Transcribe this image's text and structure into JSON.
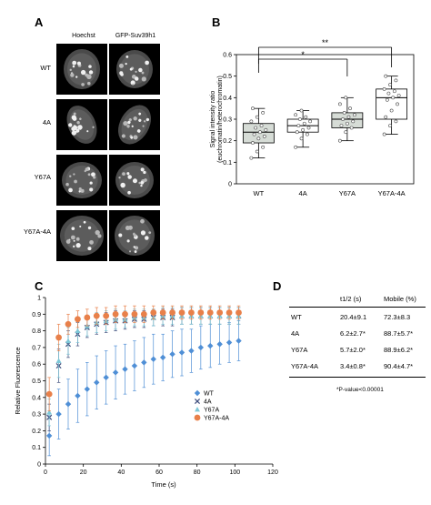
{
  "panels": {
    "a": "A",
    "b": "B",
    "c": "C",
    "d": "D"
  },
  "panelA": {
    "columns": [
      "Hoechst",
      "GFP-Suv39h1"
    ],
    "rows": [
      "WT",
      "4A",
      "Y67A",
      "Y67A-4A"
    ]
  },
  "chart_data": [
    {
      "type": "box",
      "categories": [
        "WT",
        "4A",
        "Y67A",
        "Y67A-4A"
      ],
      "ylabel": "Signal intensity ratio\n(euchromatin/heterochromatin)",
      "ylim": [
        0,
        0.6
      ],
      "yticks": [
        "0",
        "0.1",
        "0.2",
        "0.3",
        "0.4",
        "0.5",
        "0.6"
      ],
      "shaded_boxes": [
        true,
        false,
        true,
        false
      ],
      "boxes": [
        {
          "min": 0.12,
          "q1": 0.19,
          "median": 0.24,
          "q3": 0.28,
          "max": 0.35
        },
        {
          "min": 0.17,
          "q1": 0.24,
          "median": 0.27,
          "q3": 0.3,
          "max": 0.34
        },
        {
          "min": 0.2,
          "q1": 0.26,
          "median": 0.3,
          "q3": 0.33,
          "max": 0.4
        },
        {
          "min": 0.23,
          "q1": 0.3,
          "median": 0.4,
          "q3": 0.44,
          "max": 0.5
        }
      ],
      "points": [
        [
          0.12,
          0.15,
          0.17,
          0.19,
          0.21,
          0.22,
          0.23,
          0.24,
          0.25,
          0.26,
          0.27,
          0.29,
          0.31,
          0.33,
          0.35
        ],
        [
          0.17,
          0.21,
          0.23,
          0.24,
          0.25,
          0.26,
          0.27,
          0.28,
          0.29,
          0.3,
          0.31,
          0.32,
          0.34
        ],
        [
          0.2,
          0.24,
          0.26,
          0.27,
          0.28,
          0.29,
          0.3,
          0.31,
          0.32,
          0.33,
          0.35,
          0.37,
          0.4
        ],
        [
          0.23,
          0.27,
          0.29,
          0.31,
          0.34,
          0.37,
          0.39,
          0.4,
          0.41,
          0.42,
          0.43,
          0.44,
          0.46,
          0.48,
          0.5
        ]
      ],
      "significance": [
        {
          "from": "WT",
          "to": "Y67A",
          "label": "*"
        },
        {
          "from": "WT",
          "to": "Y67A-4A",
          "label": "**"
        }
      ]
    },
    {
      "type": "scatter",
      "xlabel": "Time (s)",
      "ylabel": "Relative Fluorescence",
      "xlim": [
        0,
        120
      ],
      "ylim": [
        0,
        1
      ],
      "xticks": [
        "0",
        "20",
        "40",
        "60",
        "80",
        "100",
        "120"
      ],
      "yticks": [
        "0",
        "0.1",
        "0.2",
        "0.3",
        "0.4",
        "0.5",
        "0.6",
        "0.7",
        "0.8",
        "0.9",
        "1"
      ],
      "legend": "right",
      "series": [
        {
          "name": "WT",
          "marker": "diamond",
          "color": "#4f8fd6",
          "x": [
            2,
            7,
            12,
            17,
            22,
            27,
            32,
            37,
            42,
            47,
            52,
            57,
            62,
            67,
            72,
            77,
            82,
            87,
            92,
            97,
            102
          ],
          "y": [
            0.17,
            0.3,
            0.36,
            0.41,
            0.45,
            0.49,
            0.52,
            0.55,
            0.57,
            0.59,
            0.61,
            0.63,
            0.64,
            0.66,
            0.67,
            0.68,
            0.7,
            0.71,
            0.72,
            0.73,
            0.74
          ],
          "err": [
            0.12,
            0.15,
            0.15,
            0.16,
            0.16,
            0.16,
            0.16,
            0.16,
            0.15,
            0.15,
            0.15,
            0.15,
            0.14,
            0.14,
            0.14,
            0.13,
            0.13,
            0.13,
            0.12,
            0.12,
            0.12
          ]
        },
        {
          "name": "4A",
          "marker": "x",
          "color": "#3a4a7a",
          "x": [
            2,
            7,
            12,
            17,
            22,
            27,
            32,
            37,
            42,
            47,
            52,
            57,
            62,
            67,
            72,
            77,
            82,
            87,
            92,
            97,
            102
          ],
          "y": [
            0.28,
            0.59,
            0.72,
            0.78,
            0.82,
            0.84,
            0.85,
            0.86,
            0.86,
            0.87,
            0.87,
            0.88,
            0.88,
            0.88,
            0.89,
            0.89,
            0.89,
            0.89,
            0.89,
            0.89,
            0.89
          ],
          "err": [
            0.08,
            0.1,
            0.08,
            0.07,
            0.06,
            0.06,
            0.06,
            0.06,
            0.05,
            0.05,
            0.05,
            0.05,
            0.05,
            0.05,
            0.05,
            0.05,
            0.05,
            0.05,
            0.05,
            0.05,
            0.05
          ]
        },
        {
          "name": "Y67A",
          "marker": "triangle",
          "color": "#7ec8d8",
          "x": [
            2,
            7,
            12,
            17,
            22,
            27,
            32,
            37,
            42,
            47,
            52,
            57,
            62,
            67,
            72,
            77,
            82,
            87,
            92,
            97,
            102
          ],
          "y": [
            0.31,
            0.62,
            0.74,
            0.8,
            0.83,
            0.85,
            0.86,
            0.87,
            0.87,
            0.88,
            0.88,
            0.88,
            0.89,
            0.89,
            0.89,
            0.89,
            0.89,
            0.89,
            0.89,
            0.89,
            0.89
          ],
          "err": [
            0.08,
            0.1,
            0.08,
            0.07,
            0.06,
            0.06,
            0.06,
            0.06,
            0.05,
            0.05,
            0.05,
            0.05,
            0.05,
            0.05,
            0.05,
            0.05,
            0.05,
            0.05,
            0.05,
            0.05,
            0.05
          ]
        },
        {
          "name": "Y67A-4A",
          "marker": "circle",
          "color": "#e8804a",
          "x": [
            2,
            7,
            12,
            17,
            22,
            27,
            32,
            37,
            42,
            47,
            52,
            57,
            62,
            67,
            72,
            77,
            82,
            87,
            92,
            97,
            102
          ],
          "y": [
            0.42,
            0.76,
            0.84,
            0.87,
            0.88,
            0.89,
            0.89,
            0.9,
            0.9,
            0.9,
            0.9,
            0.91,
            0.91,
            0.91,
            0.91,
            0.91,
            0.91,
            0.91,
            0.91,
            0.91,
            0.91
          ],
          "err": [
            0.1,
            0.08,
            0.06,
            0.05,
            0.05,
            0.05,
            0.05,
            0.05,
            0.05,
            0.05,
            0.05,
            0.04,
            0.04,
            0.04,
            0.04,
            0.04,
            0.04,
            0.04,
            0.04,
            0.04,
            0.04
          ]
        }
      ]
    },
    {
      "type": "table",
      "columns": [
        "",
        "t1/2 (s)",
        "Mobile (%)"
      ],
      "rows": [
        [
          "WT",
          "20.4±9.1",
          "72.3±8.3"
        ],
        [
          "4A",
          "6.2±2.7*",
          "88.7±5.7*"
        ],
        [
          "Y67A",
          "5.7±2.0*",
          "88.9±6.2*"
        ],
        [
          "Y67A-4A",
          "3.4±0.8*",
          "90.4±4.7*"
        ]
      ],
      "footnote": "*P-value<0.00001"
    }
  ]
}
